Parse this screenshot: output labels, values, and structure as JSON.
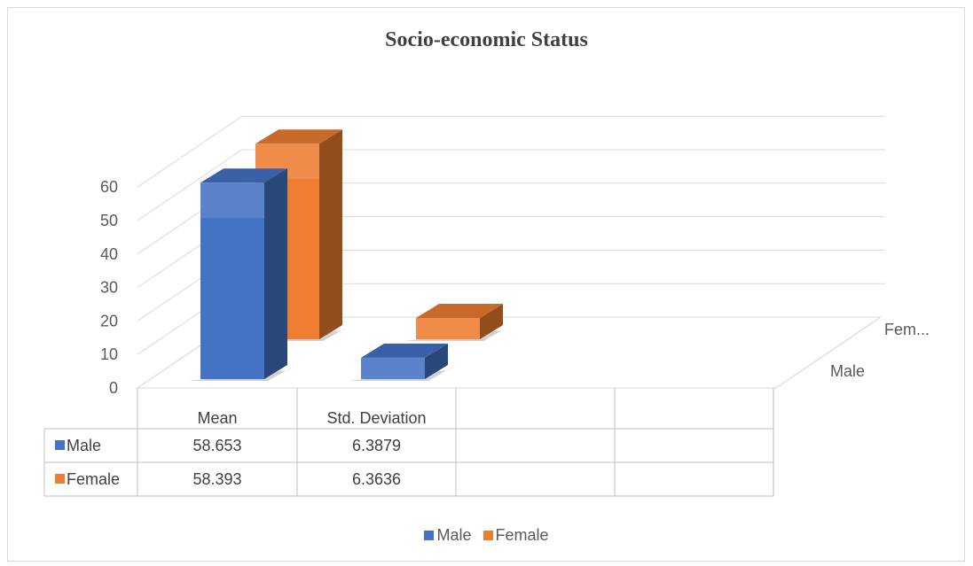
{
  "chart_data": {
    "type": "bar",
    "style": "3d-column",
    "title": "Socio-economic Status",
    "categories": [
      "Mean",
      "Std. Deviation"
    ],
    "series": [
      {
        "name": "Male",
        "values": [
          58.653,
          6.3879
        ],
        "color": "#4472c4"
      },
      {
        "name": "Female",
        "values": [
          58.393,
          6.3636
        ],
        "color": "#ed7d31"
      }
    ],
    "depth_labels": [
      "Male",
      "Fem..."
    ],
    "ylim": [
      0,
      60
    ],
    "yticks": [
      0,
      10,
      20,
      30,
      40,
      50,
      60
    ],
    "data_table": {
      "headers": [
        "Mean",
        "Std. Deviation",
        "",
        ""
      ],
      "rows": [
        {
          "label": "Male",
          "cells": [
            "58.653",
            "6.3879",
            "",
            ""
          ]
        },
        {
          "label": "Female",
          "cells": [
            "58.393",
            "6.3636",
            "",
            ""
          ]
        }
      ]
    },
    "legend": {
      "position": "bottom",
      "items": [
        "Male",
        "Female"
      ]
    },
    "grid": true
  }
}
